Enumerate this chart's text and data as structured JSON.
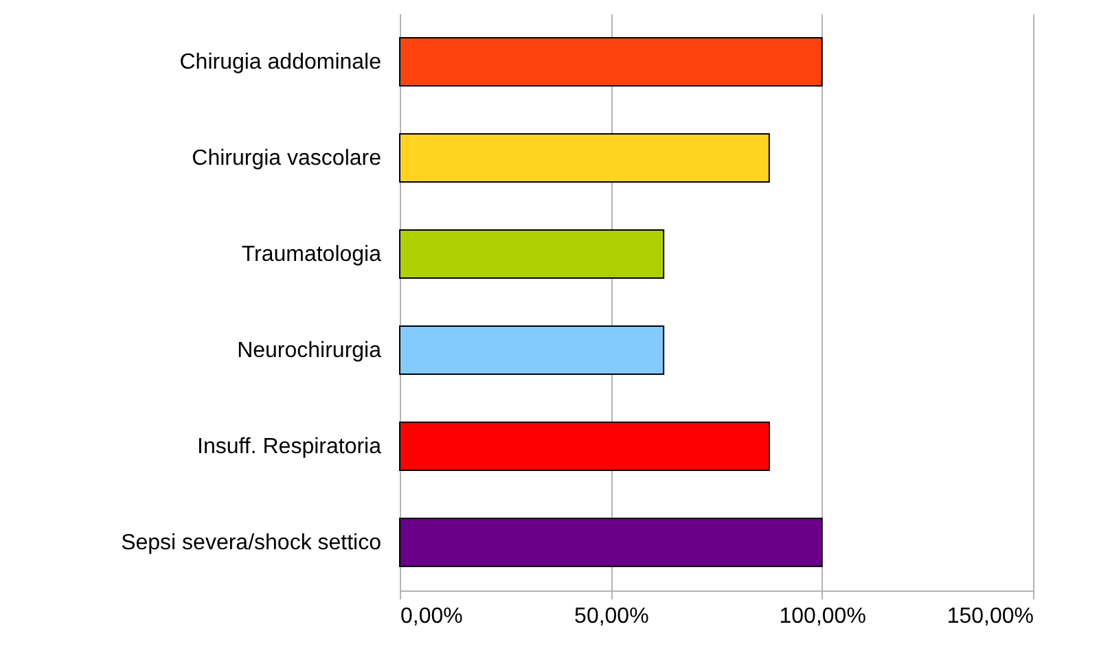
{
  "chart_data": {
    "type": "bar",
    "orientation": "horizontal",
    "categories": [
      "Chirugia addominale",
      "Chirurgia vascolare",
      "Traumatologia",
      "Neurochirurgia",
      "Insuff. Respiratoria",
      "Sepsi severa/shock settico"
    ],
    "values": [
      100,
      87.5,
      62.5,
      62.5,
      87.5,
      100
    ],
    "colors": [
      "#ff420e",
      "#ffd320",
      "#aecf00",
      "#83caff",
      "#ff0000",
      "#6a008a"
    ],
    "xlim": [
      0,
      150
    ],
    "xticks": [
      {
        "value": 0,
        "label": "0,00%"
      },
      {
        "value": 50,
        "label": "50,00%"
      },
      {
        "value": 100,
        "label": "100,00%"
      },
      {
        "value": 150,
        "label": "150,00%"
      }
    ],
    "grid": "x"
  }
}
